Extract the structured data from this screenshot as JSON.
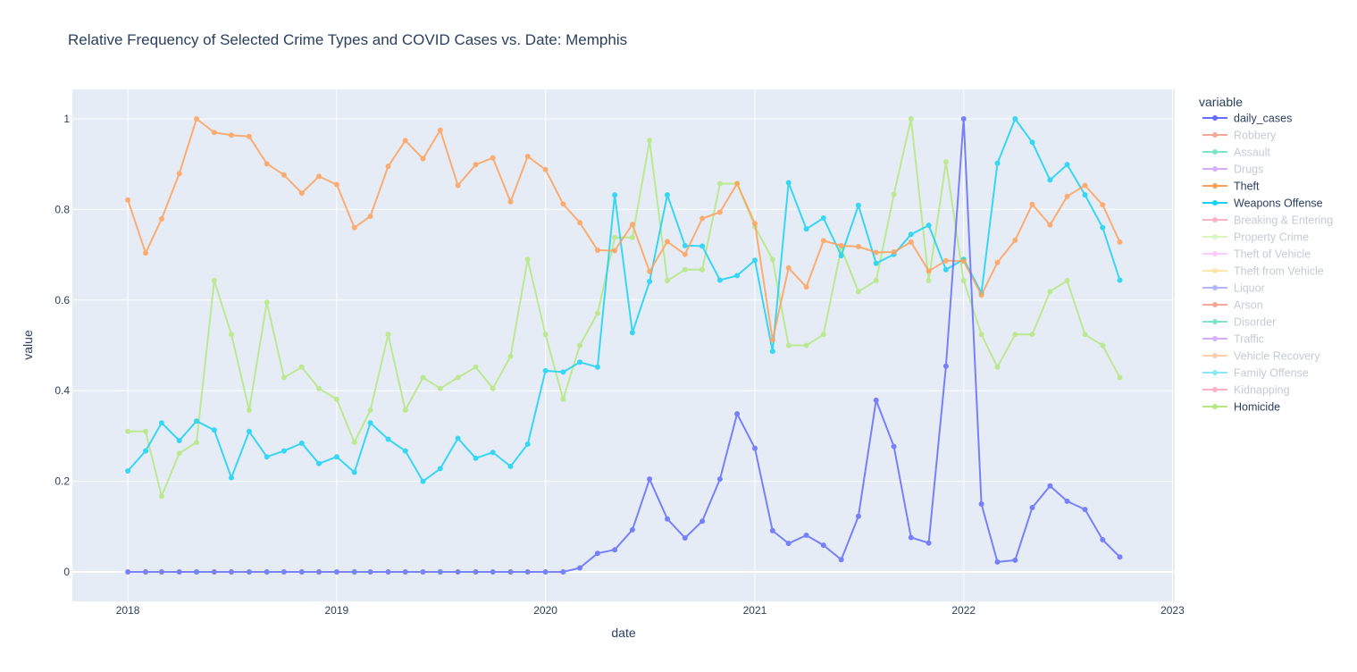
{
  "chart_data": {
    "type": "line",
    "title": "Relative Frequency of Selected Crime Types and COVID Cases vs. Date: Memphis",
    "xlabel": "date",
    "ylabel": "value",
    "x_ticks": [
      "2018",
      "2019",
      "2020",
      "2021",
      "2022",
      "2023"
    ],
    "y_ticks": [
      "0",
      "0.2",
      "0.4",
      "0.6",
      "0.8",
      "1"
    ],
    "xlim": [
      "2017-09-26",
      "2023-01-05"
    ],
    "ylim": [
      -0.065,
      1.065
    ],
    "grid": true,
    "legend_title": "variable",
    "legend_position": "right",
    "background_color": "#e5ecf6",
    "dates": [
      "2018-01",
      "2018-02",
      "2018-03",
      "2018-04",
      "2018-05",
      "2018-06",
      "2018-07",
      "2018-08",
      "2018-09",
      "2018-10",
      "2018-11",
      "2018-12",
      "2019-01",
      "2019-02",
      "2019-03",
      "2019-04",
      "2019-05",
      "2019-06",
      "2019-07",
      "2019-08",
      "2019-09",
      "2019-10",
      "2019-11",
      "2019-12",
      "2020-01",
      "2020-02",
      "2020-03",
      "2020-04",
      "2020-05",
      "2020-06",
      "2020-07",
      "2020-08",
      "2020-09",
      "2020-10",
      "2020-11",
      "2020-12",
      "2021-01",
      "2021-02",
      "2021-03",
      "2021-04",
      "2021-05",
      "2021-06",
      "2021-07",
      "2021-08",
      "2021-09",
      "2021-10",
      "2021-11",
      "2021-12",
      "2022-01",
      "2022-02",
      "2022-03",
      "2022-04",
      "2022-05",
      "2022-06",
      "2022-07",
      "2022-08",
      "2022-09",
      "2022-10"
    ],
    "series": [
      {
        "name": "daily_cases",
        "color": "#636efa",
        "visible": true,
        "values": [
          0,
          0,
          0,
          0,
          0,
          0,
          0,
          0,
          0,
          0,
          0,
          0,
          0,
          0,
          0,
          0,
          0,
          0,
          0,
          0,
          0,
          0,
          0,
          0,
          0,
          0,
          0.009,
          0.041,
          0.049,
          0.093,
          0.205,
          0.117,
          0.075,
          0.112,
          0.205,
          0.349,
          0.273,
          0.091,
          0.063,
          0.081,
          0.059,
          0.027,
          0.123,
          0.379,
          0.277,
          0.076,
          0.064,
          0.454,
          1.0,
          0.15,
          0.022,
          0.026,
          0.142,
          0.19,
          0.156,
          0.138,
          0.071,
          0.033
        ]
      },
      {
        "name": "Robbery",
        "color": "#ef553b",
        "visible": false
      },
      {
        "name": "Assault",
        "color": "#00cc96",
        "visible": false
      },
      {
        "name": "Drugs",
        "color": "#ab63fa",
        "visible": false
      },
      {
        "name": "Theft",
        "color": "#ffa15a",
        "visible": true,
        "values": [
          0.821,
          0.704,
          0.779,
          0.879,
          1.0,
          0.97,
          0.964,
          0.961,
          0.901,
          0.876,
          0.836,
          0.873,
          0.855,
          0.76,
          0.785,
          0.895,
          0.952,
          0.912,
          0.975,
          0.853,
          0.899,
          0.914,
          0.817,
          0.917,
          0.888,
          0.812,
          0.771,
          0.71,
          0.709,
          0.767,
          0.663,
          0.729,
          0.701,
          0.78,
          0.794,
          0.857,
          0.769,
          0.512,
          0.671,
          0.629,
          0.731,
          0.72,
          0.718,
          0.705,
          0.706,
          0.728,
          0.664,
          0.687,
          0.686,
          0.611,
          0.683,
          0.732,
          0.811,
          0.766,
          0.829,
          0.853,
          0.81,
          0.728
        ]
      },
      {
        "name": "Weapons Offense",
        "color": "#19d3f3",
        "visible": true,
        "values": [
          0.223,
          0.267,
          0.329,
          0.29,
          0.333,
          0.313,
          0.208,
          0.31,
          0.254,
          0.267,
          0.284,
          0.239,
          0.254,
          0.22,
          0.329,
          0.293,
          0.267,
          0.2,
          0.228,
          0.295,
          0.251,
          0.264,
          0.233,
          0.282,
          0.444,
          0.441,
          0.463,
          0.452,
          0.832,
          0.528,
          0.641,
          0.832,
          0.72,
          0.719,
          0.644,
          0.654,
          0.688,
          0.487,
          0.859,
          0.757,
          0.781,
          0.698,
          0.809,
          0.681,
          0.701,
          0.745,
          0.765,
          0.667,
          0.69,
          0.616,
          0.902,
          1.0,
          0.948,
          0.865,
          0.899,
          0.832,
          0.76,
          0.644
        ]
      },
      {
        "name": "Breaking & Entering",
        "color": "#ff6692",
        "visible": false
      },
      {
        "name": "Property Crime",
        "color": "#b6e880",
        "visible": false
      },
      {
        "name": "Theft of Vehicle",
        "color": "#ff97ff",
        "visible": false
      },
      {
        "name": "Theft from Vehicle",
        "color": "#fecb52",
        "visible": false
      },
      {
        "name": "Liquor",
        "color": "#636efa",
        "visible": false
      },
      {
        "name": "Arson",
        "color": "#ef553b",
        "visible": false
      },
      {
        "name": "Disorder",
        "color": "#00cc96",
        "visible": false
      },
      {
        "name": "Traffic",
        "color": "#ab63fa",
        "visible": false
      },
      {
        "name": "Vehicle Recovery",
        "color": "#ffa15a",
        "visible": false
      },
      {
        "name": "Family Offense",
        "color": "#19d3f3",
        "visible": false
      },
      {
        "name": "Kidnapping",
        "color": "#ff6692",
        "visible": false
      },
      {
        "name": "Homicide",
        "color": "#b6e880",
        "visible": true,
        "values": [
          0.31,
          0.31,
          0.167,
          0.262,
          0.286,
          0.643,
          0.524,
          0.357,
          0.595,
          0.429,
          0.452,
          0.405,
          0.381,
          0.286,
          0.357,
          0.524,
          0.357,
          0.429,
          0.405,
          0.429,
          0.452,
          0.405,
          0.476,
          0.69,
          0.524,
          0.381,
          0.5,
          0.571,
          0.738,
          0.738,
          0.952,
          0.643,
          0.667,
          0.667,
          0.857,
          0.857,
          0.762,
          0.69,
          0.5,
          0.5,
          0.524,
          0.714,
          0.619,
          0.643,
          0.833,
          1.0,
          0.643,
          0.905,
          0.643,
          0.524,
          0.452,
          0.524,
          0.524,
          0.619,
          0.643,
          0.524,
          0.5,
          0.429
        ]
      }
    ]
  }
}
